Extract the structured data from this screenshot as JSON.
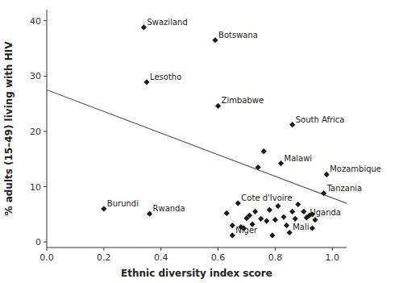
{
  "chart_data": {
    "type": "scatter",
    "xlabel": "Ethnic diversity index score",
    "ylabel": "% adults (15–49) living with HIV",
    "xlim": [
      0.0,
      1.05
    ],
    "ylim": [
      -1,
      42
    ],
    "xticks": [
      {
        "value": 0.0,
        "label": "0.0"
      },
      0.2,
      0.4,
      0.6,
      0.8,
      {
        "value": 1.0,
        "label": "1.0"
      }
    ],
    "yticks": [
      0,
      10,
      20,
      30,
      40
    ],
    "grid": false,
    "series": [
      {
        "type": "scatter",
        "marker": "diamond",
        "color": "#1a1a1a",
        "x": [
          0.34,
          0.59,
          0.35,
          0.6,
          0.86,
          0.76,
          0.82,
          0.74,
          0.98,
          0.97,
          0.2,
          0.36,
          0.67,
          0.91,
          0.85,
          0.65,
          0.63,
          0.65,
          0.68,
          0.7,
          0.71,
          0.72,
          0.73,
          0.75,
          0.77,
          0.78,
          0.8,
          0.81,
          0.83,
          0.84,
          0.86,
          0.87,
          0.88,
          0.9,
          0.92,
          0.93,
          0.94,
          0.93,
          0.79,
          0.69
        ],
        "values": [
          38.8,
          36.5,
          28.9,
          24.6,
          21.2,
          16.4,
          14.2,
          13.5,
          12.2,
          8.8,
          6.0,
          5.1,
          7.0,
          4.4,
          1.7,
          1.2,
          5.2,
          3.0,
          2.7,
          4.3,
          4.8,
          3.2,
          5.5,
          4.2,
          3.8,
          5.8,
          4.0,
          6.5,
          4.5,
          3.0,
          5.5,
          4.2,
          6.8,
          5.5,
          4.8,
          5.0,
          4.0,
          2.5,
          1.2,
          2.5
        ],
        "labels": [
          "Swaziland",
          "Botswana",
          "Lesotho",
          "Zimbabwe",
          "South Africa",
          null,
          "Malawi",
          null,
          "Mozambique",
          "Tanzania",
          "Burundi",
          "Rwanda",
          "Cote d'Ivoire",
          "Uganda",
          "Mali",
          "Niger",
          null,
          null,
          null,
          null,
          null,
          null,
          null,
          null,
          null,
          null,
          null,
          null,
          null,
          null,
          null,
          null,
          null,
          null,
          null,
          null,
          null,
          null,
          null,
          null
        ]
      },
      {
        "type": "line",
        "color": "#555555",
        "x": [
          0.0,
          1.05
        ],
        "values": [
          27.5,
          7.0
        ]
      }
    ]
  }
}
